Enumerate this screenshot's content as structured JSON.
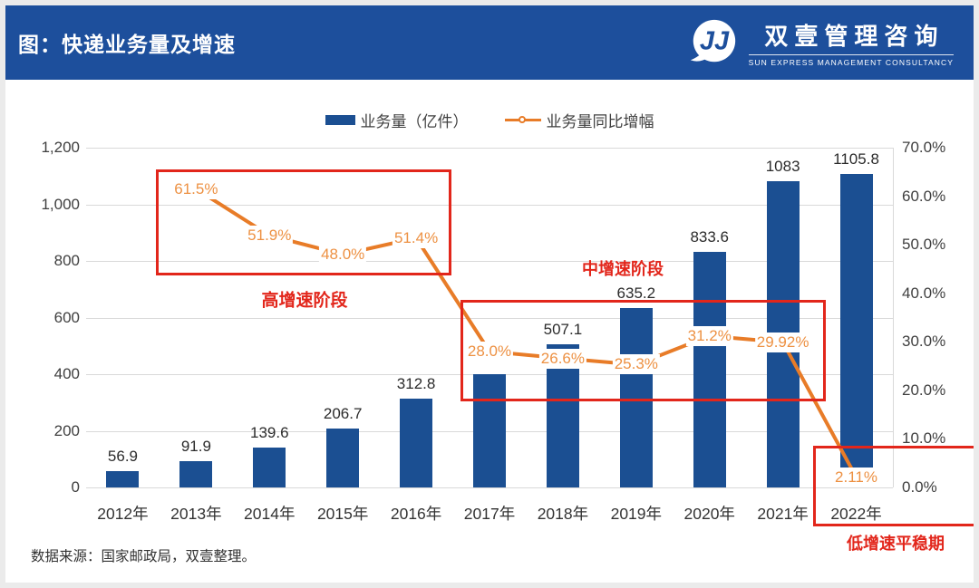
{
  "header": {
    "title": "图：快递业务量及增速",
    "logo": {
      "monogram": "JJ",
      "cn": "双壹管理咨询",
      "en": "SUN EXPRESS MANAGEMENT CONSULTANCY"
    }
  },
  "footer": {
    "source": "数据来源：国家邮政局，双壹整理。"
  },
  "colors": {
    "banner_blue": "#1D4F9C",
    "bar_blue": "#1B4F92",
    "line_orange": "#E87C28",
    "label_orange": "#ED9143",
    "annotation_red": "#E2261B",
    "gridline_gray": "#d9d9d9"
  },
  "chart_data": {
    "type": "bar",
    "subtype": "combo-bar-line-dual-axis",
    "categories": [
      "2012年",
      "2013年",
      "2014年",
      "2015年",
      "2016年",
      "2017年",
      "2018年",
      "2019年",
      "2020年",
      "2021年",
      "2022年"
    ],
    "bar_series": {
      "name": "业务量（亿件）",
      "color": "#1B4F92",
      "values": [
        56.9,
        91.9,
        139.6,
        206.7,
        312.8,
        400.6,
        507.1,
        635.2,
        833.6,
        1083,
        1105.8
      ],
      "data_labels": [
        "56.9",
        "91.9",
        "139.6",
        "206.7",
        "312.8",
        "",
        "507.1",
        "635.2",
        "833.6",
        "1083",
        "1105.8"
      ]
    },
    "line_series": {
      "name": "业务量同比增幅",
      "color": "#E87C28",
      "values_pct": [
        null,
        61.5,
        51.9,
        48.0,
        51.4,
        28.0,
        26.6,
        25.3,
        31.2,
        29.92,
        2.11
      ],
      "data_labels": [
        null,
        "61.5%",
        "51.9%",
        "48.0%",
        "51.4%",
        "28.0%",
        "26.6%",
        "25.3%",
        "31.2%",
        "29.92%",
        "2.11%"
      ]
    },
    "left_axis": {
      "min": 0,
      "max": 1200,
      "step": 200,
      "tick_labels": [
        "0",
        "200",
        "400",
        "600",
        "800",
        "1,000",
        "1,200"
      ]
    },
    "right_axis": {
      "min": 0,
      "max": 70,
      "step": 10,
      "tick_labels": [
        "0.0%",
        "10.0%",
        "20.0%",
        "30.0%",
        "40.0%",
        "50.0%",
        "60.0%",
        "70.0%"
      ]
    },
    "grid": "horizontal",
    "legend_position": "top-center",
    "annotations": [
      {
        "id": "high",
        "label": "高增速阶段",
        "covers": "2013-2016 增速 48%-61.5%"
      },
      {
        "id": "medium",
        "label": "中增速阶段",
        "covers": "2017-2021 增速 25.3%-31.2%"
      },
      {
        "id": "low",
        "label": "低增速平稳期",
        "covers": "2022 增速 2.11%"
      }
    ]
  }
}
